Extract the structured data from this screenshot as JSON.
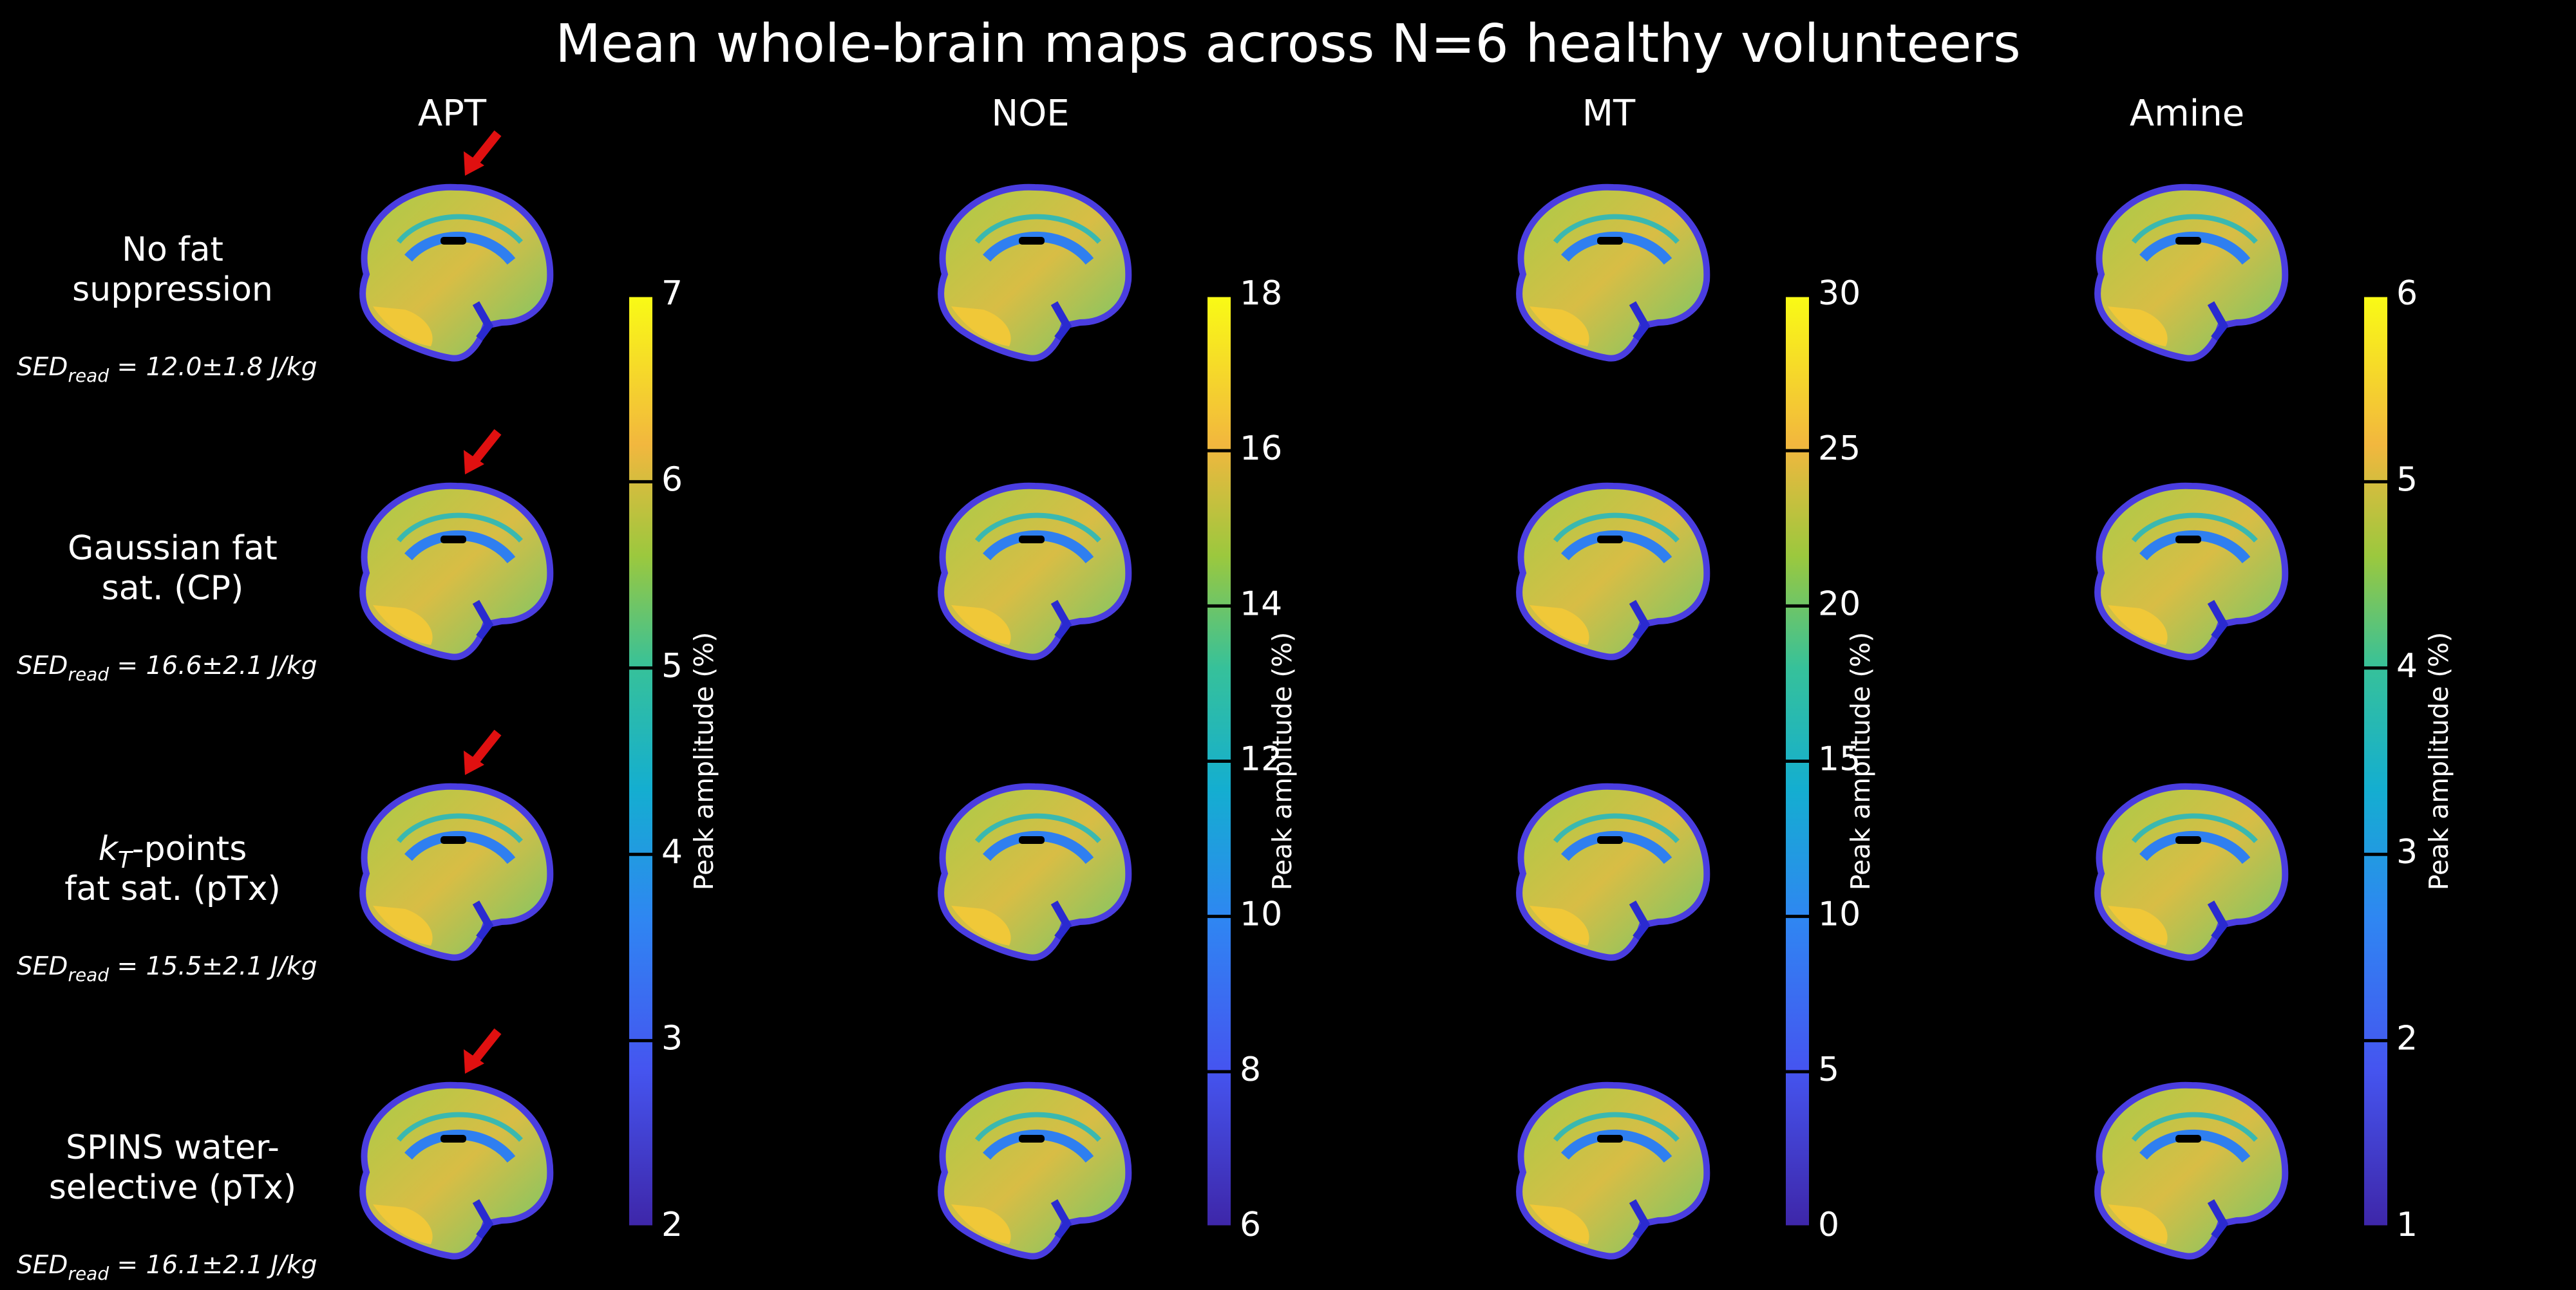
{
  "title": "Mean whole-brain maps across N=6 healthy volunteers",
  "columns": [
    {
      "label": "APT",
      "colorbar": {
        "label": "Peak amplitude (%)",
        "lim": [
          2,
          7
        ],
        "ticks": [
          2,
          3,
          4,
          5,
          6,
          7
        ]
      }
    },
    {
      "label": "NOE",
      "colorbar": {
        "label": "Peak amplitude (%)",
        "lim": [
          6,
          18
        ],
        "ticks": [
          6,
          8,
          10,
          12,
          14,
          16,
          18
        ]
      }
    },
    {
      "label": "MT",
      "colorbar": {
        "label": "Peak amplitude (%)",
        "lim": [
          0,
          30
        ],
        "ticks": [
          0,
          5,
          10,
          15,
          20,
          25,
          30
        ]
      }
    },
    {
      "label": "Amine",
      "colorbar": {
        "label": "Peak amplitude (%)",
        "lim": [
          1,
          6
        ],
        "ticks": [
          1,
          2,
          3,
          4,
          5,
          6
        ]
      }
    }
  ],
  "rows": [
    {
      "label": [
        "No fat",
        "suppression"
      ],
      "sed": {
        "symbol": "SED",
        "subscript": "read",
        "value": " = 12.0±1.8 J/kg"
      }
    },
    {
      "label": [
        "Gaussian fat",
        "sat. (CP)"
      ],
      "sed": {
        "symbol": "SED",
        "subscript": "read",
        "value": " = 16.6±2.1 J/kg"
      }
    },
    {
      "label": [
        {
          "italic": "k",
          "subscript": "T",
          "text": "-points"
        },
        "fat sat. (pTx)"
      ],
      "sed": {
        "symbol": "SED",
        "subscript": "read",
        "value": " = 15.5±2.1 J/kg"
      }
    },
    {
      "label": [
        "SPINS water-",
        "selective (pTx)"
      ],
      "sed": {
        "symbol": "SED",
        "subscript": "read",
        "value": " = 16.1±2.1 J/kg"
      }
    }
  ]
}
